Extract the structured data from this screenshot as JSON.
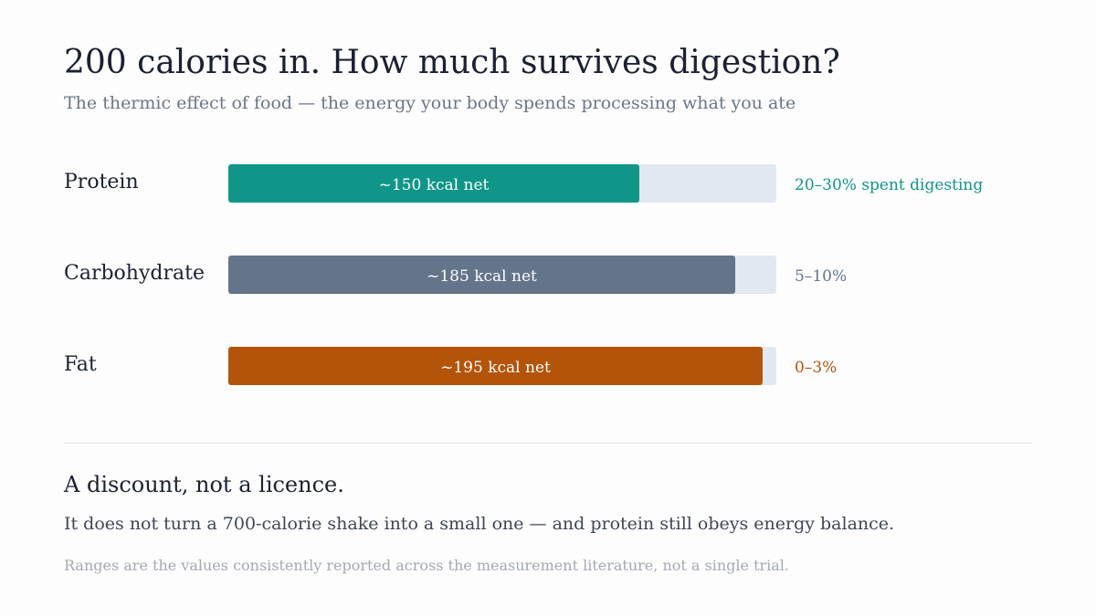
{
  "header": {
    "title": "200 calories in. How much survives digestion?",
    "subtitle": "The thermic effect of food — the energy your body spends processing what you ate"
  },
  "colors": {
    "protein": "#0f9688",
    "carbohydrate": "#64748b",
    "fat": "#b4540a",
    "track": "#e2e8f0"
  },
  "chart_data": {
    "type": "bar",
    "orientation": "horizontal",
    "total_kcal": 200,
    "categories": [
      "Protein",
      "Carbohydrate",
      "Fat"
    ],
    "values": [
      150,
      185,
      195
    ],
    "value_labels": [
      "~150 kcal net",
      "~185 kcal net",
      "~195 kcal net"
    ],
    "range_labels": [
      "20–30% spent digesting",
      "5–10%",
      "0–3%"
    ],
    "colors": [
      "#0f9688",
      "#64748b",
      "#b4540a"
    ],
    "xlim": [
      0,
      200
    ],
    "grid": false,
    "legend": "none"
  },
  "note": {
    "heading": "A discount, not a licence.",
    "body": "It does not turn a 700-calorie shake into a small one — and protein still obeys energy balance."
  },
  "footnote": "Ranges are the values consistently reported across the measurement literature, not a single trial."
}
